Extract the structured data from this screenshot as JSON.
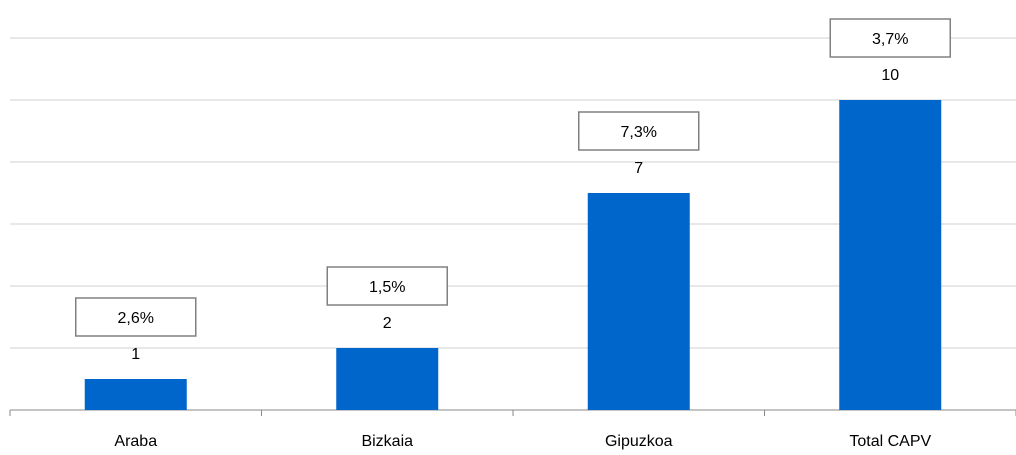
{
  "chart_data": {
    "type": "bar",
    "categories": [
      "Araba",
      "Bizkaia",
      "Gipuzkoa",
      "Total CAPV"
    ],
    "values": [
      1,
      2,
      7,
      10
    ],
    "percent_labels": [
      "2,6%",
      "1,5%",
      "7,3%",
      "3,7%"
    ],
    "ylim": [
      0,
      12
    ],
    "grid": true,
    "bar_color": "#0066cc"
  }
}
